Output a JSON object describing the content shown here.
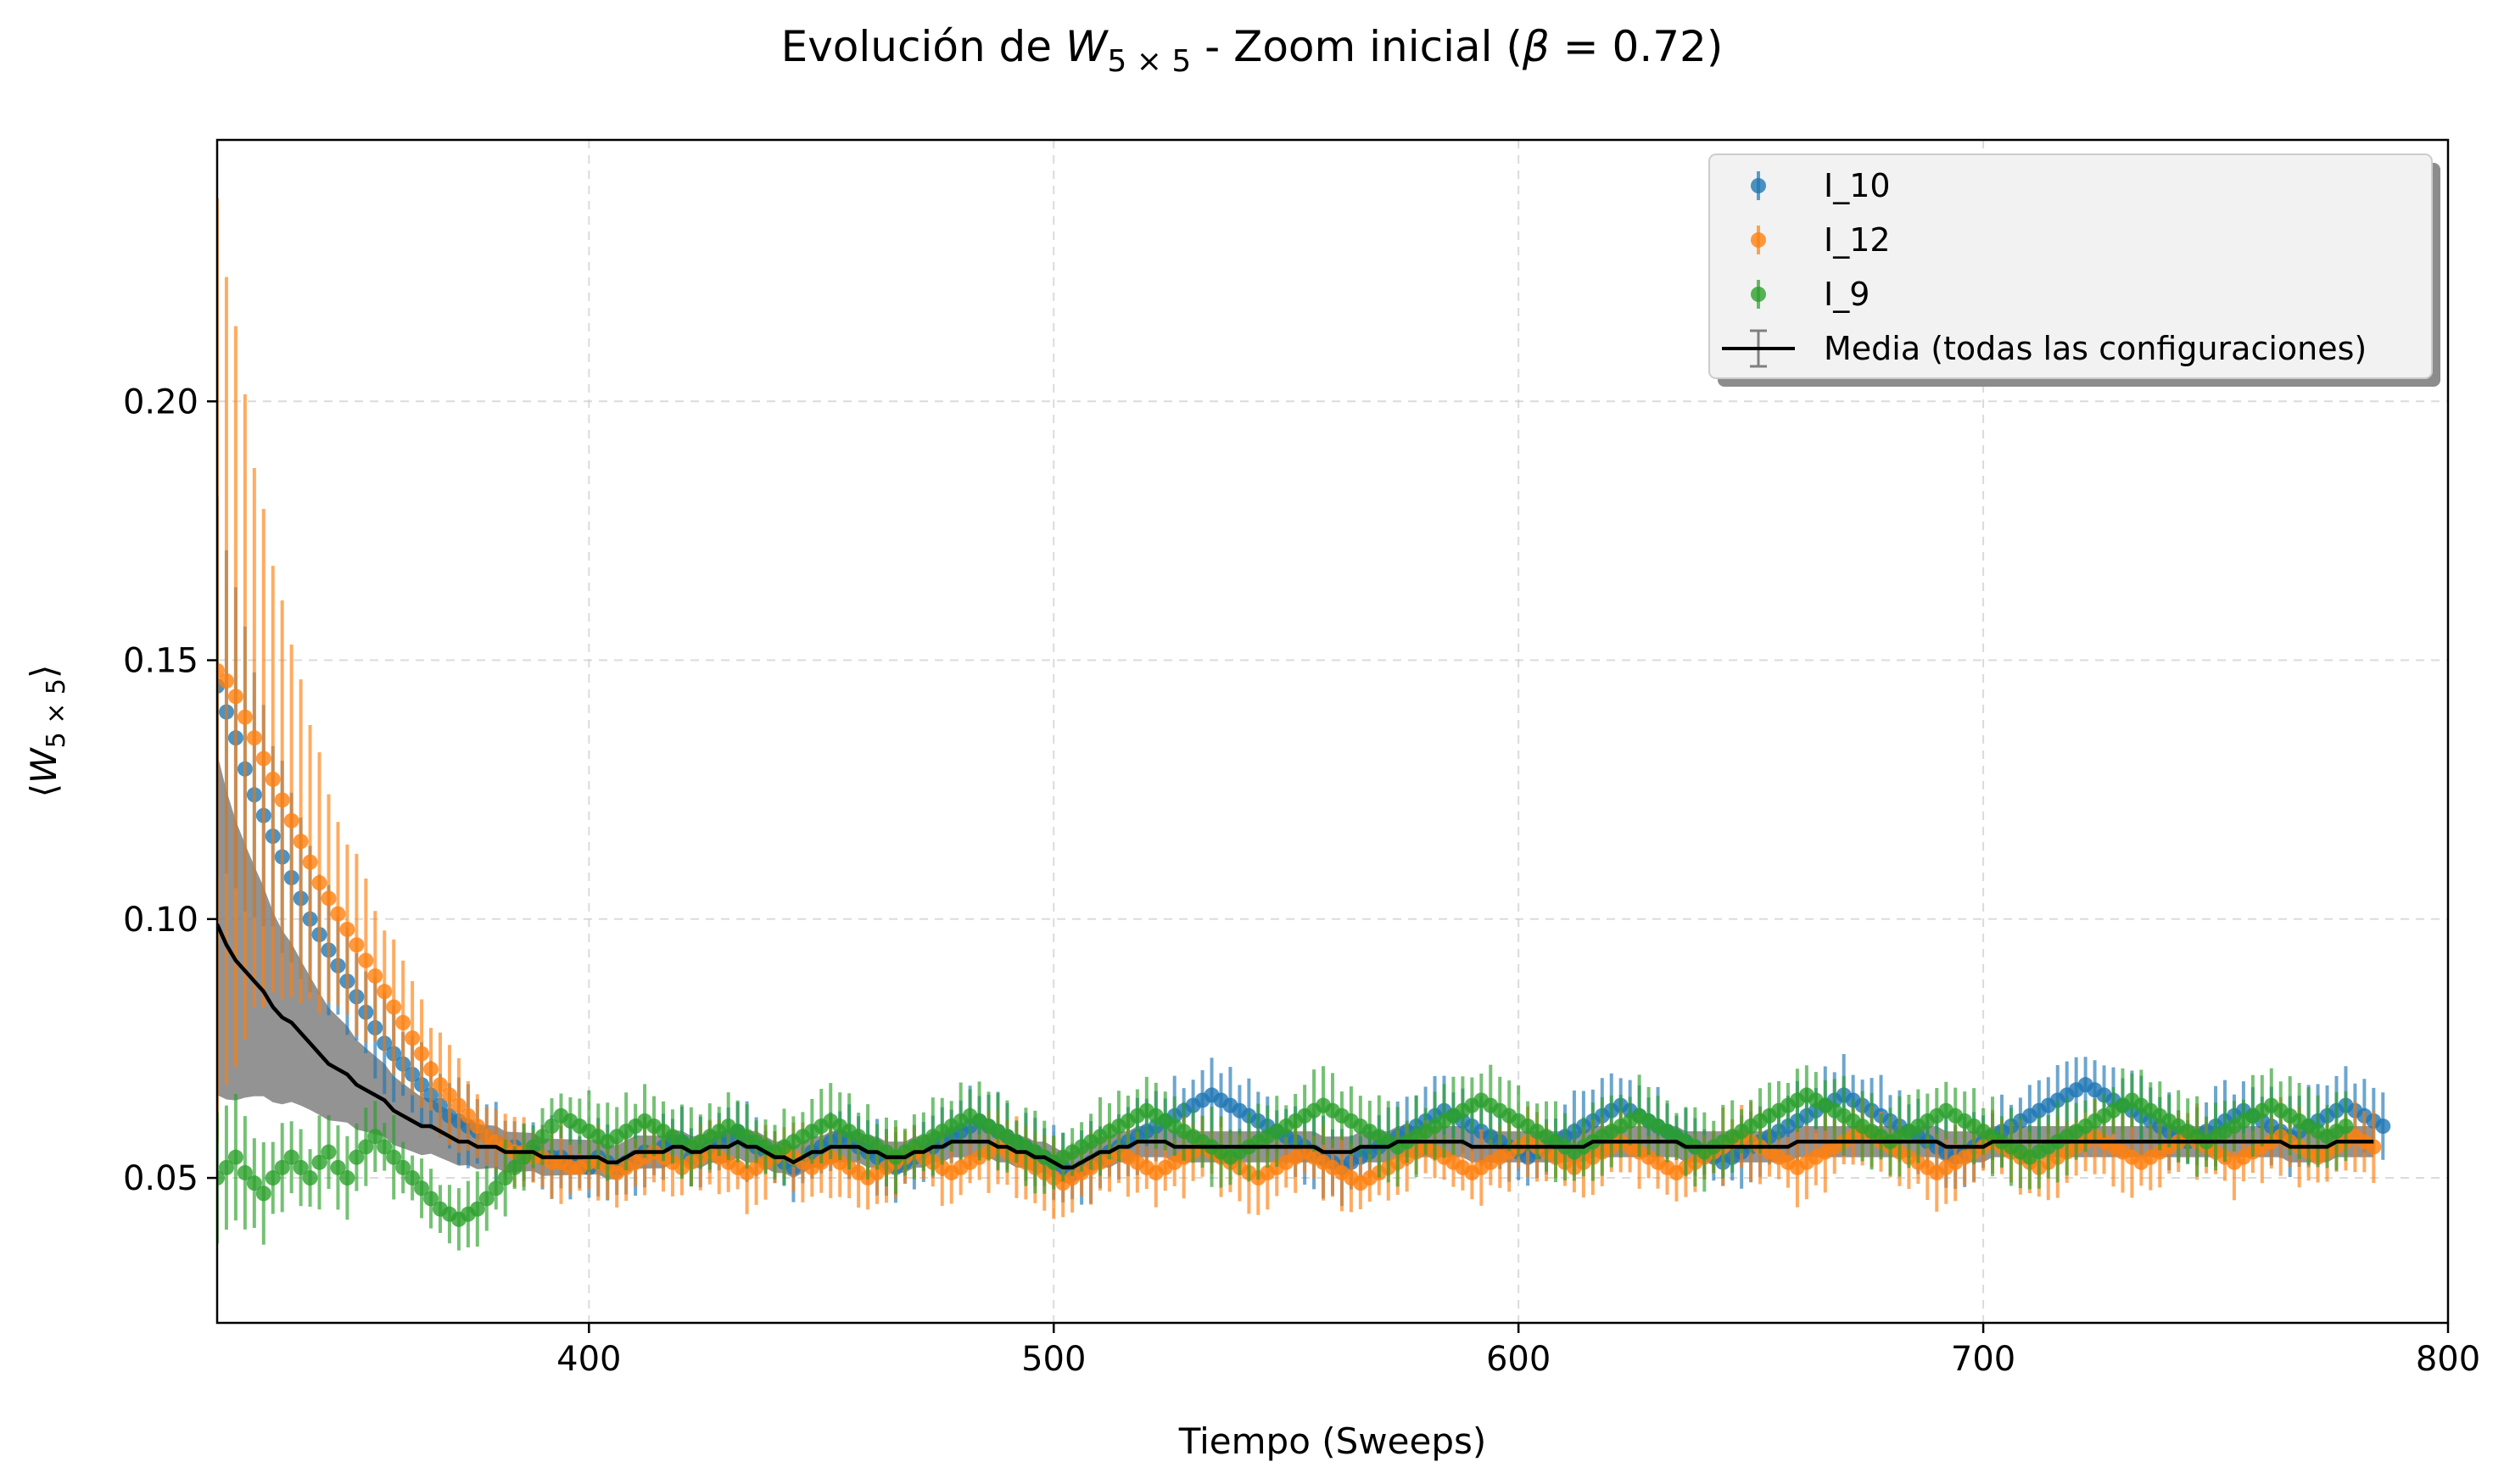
{
  "chart_data": {
    "type": "scatter",
    "title": {
      "prefix": "Evolución de ",
      "w_symbol": "W",
      "w_subscript": "5 × 5",
      "middle": " - Zoom inicial (",
      "beta_symbol": "β",
      "beta_value": " = 0.72)"
    },
    "xlabel": "Tiempo (Sweeps)",
    "ylabel": {
      "open": "⟨",
      "w_symbol": "W",
      "w_subscript": "5 × 5",
      "close": "⟩"
    },
    "xlim": [
      320,
      800
    ],
    "ylim": [
      0.022,
      0.2505
    ],
    "x_ticks": [
      400,
      500,
      600,
      700,
      800
    ],
    "y_ticks": [
      0.05,
      0.1,
      0.15,
      0.2
    ],
    "x_tick_labels": [
      "400",
      "500",
      "600",
      "700",
      "800"
    ],
    "y_tick_labels": [
      "0.05",
      "0.10",
      "0.15",
      "0.20"
    ],
    "grid": true,
    "legend_position": "top-right",
    "x_start": 320,
    "x_step": 2,
    "series": [
      {
        "name": "I_10",
        "color": "#1f77b4",
        "marker": "circle",
        "error_bars": true,
        "values": [
          0.145,
          0.14,
          0.135,
          0.129,
          0.124,
          0.12,
          0.116,
          0.112,
          0.108,
          0.104,
          0.1,
          0.097,
          0.094,
          0.091,
          0.088,
          0.085,
          0.082,
          0.079,
          0.076,
          0.074,
          0.072,
          0.07,
          0.068,
          0.066,
          0.064,
          0.062,
          0.061,
          0.06,
          0.059,
          0.058,
          0.057,
          0.056,
          0.056,
          0.055,
          0.055,
          0.054,
          0.054,
          0.054,
          0.053,
          0.053,
          0.052,
          0.054,
          0.053,
          0.052,
          0.053,
          0.054,
          0.055,
          0.055,
          0.056,
          0.057,
          0.057,
          0.054,
          0.055,
          0.056,
          0.057,
          0.058,
          0.059,
          0.057,
          0.056,
          0.055,
          0.054,
          0.053,
          0.052,
          0.053,
          0.055,
          0.056,
          0.057,
          0.058,
          0.057,
          0.056,
          0.055,
          0.054,
          0.053,
          0.052,
          0.053,
          0.054,
          0.055,
          0.056,
          0.057,
          0.058,
          0.059,
          0.06,
          0.061,
          0.06,
          0.059,
          0.058,
          0.057,
          0.056,
          0.055,
          0.054,
          0.053,
          0.052,
          0.051,
          0.052,
          0.053,
          0.054,
          0.055,
          0.056,
          0.057,
          0.058,
          0.059,
          0.06,
          0.061,
          0.062,
          0.063,
          0.064,
          0.065,
          0.066,
          0.065,
          0.064,
          0.063,
          0.062,
          0.061,
          0.06,
          0.059,
          0.058,
          0.057,
          0.056,
          0.055,
          0.054,
          0.053,
          0.052,
          0.053,
          0.054,
          0.055,
          0.056,
          0.057,
          0.058,
          0.059,
          0.06,
          0.061,
          0.062,
          0.063,
          0.062,
          0.061,
          0.06,
          0.059,
          0.058,
          0.057,
          0.056,
          0.055,
          0.054,
          0.055,
          0.056,
          0.057,
          0.058,
          0.059,
          0.06,
          0.061,
          0.062,
          0.063,
          0.064,
          0.063,
          0.062,
          0.061,
          0.06,
          0.059,
          0.058,
          0.057,
          0.056,
          0.055,
          0.054,
          0.053,
          0.054,
          0.055,
          0.056,
          0.057,
          0.058,
          0.059,
          0.06,
          0.061,
          0.062,
          0.063,
          0.064,
          0.065,
          0.066,
          0.065,
          0.064,
          0.063,
          0.062,
          0.061,
          0.06,
          0.059,
          0.058,
          0.057,
          0.056,
          0.055,
          0.054,
          0.055,
          0.056,
          0.057,
          0.058,
          0.059,
          0.06,
          0.061,
          0.062,
          0.063,
          0.064,
          0.065,
          0.066,
          0.067,
          0.068,
          0.067,
          0.066,
          0.065,
          0.064,
          0.063,
          0.062,
          0.061,
          0.06,
          0.059,
          0.058,
          0.057,
          0.058,
          0.059,
          0.06,
          0.061,
          0.062,
          0.063,
          0.062,
          0.061,
          0.06,
          0.059,
          0.058,
          0.059,
          0.06,
          0.061,
          0.062,
          0.063,
          0.064,
          0.063,
          0.062,
          0.061,
          0.06
        ]
      },
      {
        "name": "I_12",
        "color": "#ff7f0e",
        "marker": "circle",
        "error_bars": true,
        "values": [
          0.148,
          0.146,
          0.143,
          0.139,
          0.135,
          0.131,
          0.127,
          0.123,
          0.119,
          0.115,
          0.111,
          0.107,
          0.104,
          0.101,
          0.098,
          0.095,
          0.092,
          0.089,
          0.086,
          0.083,
          0.08,
          0.077,
          0.074,
          0.071,
          0.068,
          0.066,
          0.064,
          0.062,
          0.06,
          0.058,
          0.057,
          0.056,
          0.055,
          0.055,
          0.054,
          0.054,
          0.053,
          0.053,
          0.052,
          0.052,
          0.053,
          0.053,
          0.052,
          0.051,
          0.052,
          0.053,
          0.054,
          0.055,
          0.054,
          0.053,
          0.052,
          0.053,
          0.054,
          0.055,
          0.054,
          0.053,
          0.052,
          0.051,
          0.052,
          0.053,
          0.054,
          0.055,
          0.054,
          0.053,
          0.052,
          0.053,
          0.054,
          0.053,
          0.052,
          0.051,
          0.05,
          0.051,
          0.052,
          0.053,
          0.054,
          0.055,
          0.054,
          0.053,
          0.052,
          0.051,
          0.052,
          0.053,
          0.054,
          0.055,
          0.056,
          0.055,
          0.054,
          0.053,
          0.052,
          0.051,
          0.05,
          0.049,
          0.05,
          0.051,
          0.052,
          0.053,
          0.054,
          0.055,
          0.054,
          0.053,
          0.052,
          0.051,
          0.052,
          0.053,
          0.054,
          0.055,
          0.056,
          0.055,
          0.054,
          0.053,
          0.052,
          0.051,
          0.05,
          0.051,
          0.052,
          0.053,
          0.054,
          0.055,
          0.054,
          0.053,
          0.052,
          0.051,
          0.05,
          0.049,
          0.05,
          0.051,
          0.052,
          0.053,
          0.054,
          0.055,
          0.056,
          0.055,
          0.054,
          0.053,
          0.052,
          0.051,
          0.052,
          0.053,
          0.054,
          0.055,
          0.056,
          0.057,
          0.056,
          0.055,
          0.054,
          0.053,
          0.052,
          0.053,
          0.054,
          0.055,
          0.056,
          0.057,
          0.056,
          0.055,
          0.054,
          0.053,
          0.052,
          0.051,
          0.052,
          0.053,
          0.054,
          0.055,
          0.056,
          0.057,
          0.058,
          0.057,
          0.056,
          0.055,
          0.054,
          0.053,
          0.052,
          0.053,
          0.054,
          0.055,
          0.056,
          0.057,
          0.058,
          0.059,
          0.058,
          0.057,
          0.056,
          0.055,
          0.054,
          0.053,
          0.052,
          0.051,
          0.052,
          0.053,
          0.054,
          0.055,
          0.056,
          0.057,
          0.056,
          0.055,
          0.054,
          0.053,
          0.052,
          0.053,
          0.054,
          0.055,
          0.056,
          0.057,
          0.058,
          0.057,
          0.056,
          0.055,
          0.054,
          0.053,
          0.054,
          0.055,
          0.056,
          0.057,
          0.058,
          0.057,
          0.056,
          0.055,
          0.054,
          0.053,
          0.054,
          0.055,
          0.056,
          0.057,
          0.058,
          0.057,
          0.056,
          0.055,
          0.054,
          0.055,
          0.056,
          0.057,
          0.058,
          0.057,
          0.056
        ]
      },
      {
        "name": "I_9",
        "color": "#2ca02c",
        "marker": "circle",
        "error_bars": true,
        "values": [
          0.05,
          0.052,
          0.054,
          0.051,
          0.049,
          0.047,
          0.05,
          0.052,
          0.054,
          0.052,
          0.05,
          0.053,
          0.055,
          0.052,
          0.05,
          0.054,
          0.056,
          0.058,
          0.056,
          0.054,
          0.052,
          0.05,
          0.048,
          0.046,
          0.044,
          0.043,
          0.042,
          0.043,
          0.044,
          0.046,
          0.048,
          0.05,
          0.052,
          0.054,
          0.056,
          0.058,
          0.06,
          0.062,
          0.061,
          0.06,
          0.059,
          0.058,
          0.057,
          0.058,
          0.059,
          0.06,
          0.061,
          0.06,
          0.059,
          0.058,
          0.057,
          0.056,
          0.057,
          0.058,
          0.059,
          0.06,
          0.059,
          0.058,
          0.057,
          0.056,
          0.055,
          0.056,
          0.057,
          0.058,
          0.059,
          0.06,
          0.061,
          0.06,
          0.059,
          0.058,
          0.057,
          0.056,
          0.055,
          0.054,
          0.055,
          0.056,
          0.057,
          0.058,
          0.059,
          0.06,
          0.061,
          0.062,
          0.061,
          0.06,
          0.059,
          0.058,
          0.057,
          0.056,
          0.055,
          0.054,
          0.053,
          0.054,
          0.055,
          0.056,
          0.057,
          0.058,
          0.059,
          0.06,
          0.061,
          0.062,
          0.063,
          0.062,
          0.061,
          0.06,
          0.059,
          0.058,
          0.057,
          0.056,
          0.055,
          0.054,
          0.055,
          0.056,
          0.057,
          0.058,
          0.059,
          0.06,
          0.061,
          0.062,
          0.063,
          0.064,
          0.063,
          0.062,
          0.061,
          0.06,
          0.059,
          0.058,
          0.057,
          0.056,
          0.057,
          0.058,
          0.059,
          0.06,
          0.061,
          0.062,
          0.063,
          0.064,
          0.065,
          0.064,
          0.063,
          0.062,
          0.061,
          0.06,
          0.059,
          0.058,
          0.057,
          0.056,
          0.055,
          0.056,
          0.057,
          0.058,
          0.059,
          0.06,
          0.061,
          0.062,
          0.061,
          0.06,
          0.059,
          0.058,
          0.057,
          0.056,
          0.055,
          0.056,
          0.057,
          0.058,
          0.059,
          0.06,
          0.061,
          0.062,
          0.063,
          0.064,
          0.065,
          0.066,
          0.065,
          0.064,
          0.063,
          0.062,
          0.061,
          0.06,
          0.059,
          0.058,
          0.057,
          0.058,
          0.059,
          0.06,
          0.061,
          0.062,
          0.063,
          0.062,
          0.061,
          0.06,
          0.059,
          0.058,
          0.057,
          0.056,
          0.055,
          0.054,
          0.055,
          0.056,
          0.057,
          0.058,
          0.059,
          0.06,
          0.061,
          0.062,
          0.063,
          0.064,
          0.065,
          0.064,
          0.063,
          0.062,
          0.061,
          0.06,
          0.059,
          0.058,
          0.057,
          0.058,
          0.059,
          0.06,
          0.061,
          0.062,
          0.063,
          0.064,
          0.063,
          0.062,
          0.061,
          0.06,
          0.059,
          0.058,
          0.059,
          0.06
        ]
      }
    ],
    "mean": {
      "name": "Media (todas las configuraciones)",
      "color": "#000000",
      "band_color": "#808080",
      "values": [
        0.099,
        0.095,
        0.092,
        0.09,
        0.088,
        0.086,
        0.083,
        0.081,
        0.08,
        0.078,
        0.076,
        0.074,
        0.072,
        0.071,
        0.07,
        0.068,
        0.067,
        0.066,
        0.065,
        0.063,
        0.062,
        0.061,
        0.06,
        0.06,
        0.059,
        0.058,
        0.057,
        0.057,
        0.056,
        0.056,
        0.056,
        0.055,
        0.055,
        0.055,
        0.055,
        0.054,
        0.054,
        0.054,
        0.054,
        0.054,
        0.054,
        0.054,
        0.053,
        0.053,
        0.054,
        0.055,
        0.055,
        0.055,
        0.055,
        0.056,
        0.056,
        0.055,
        0.055,
        0.056,
        0.056,
        0.056,
        0.057,
        0.056,
        0.056,
        0.055,
        0.054,
        0.054,
        0.053,
        0.054,
        0.055,
        0.055,
        0.056,
        0.056,
        0.056,
        0.056,
        0.055,
        0.055,
        0.054,
        0.054,
        0.054,
        0.055,
        0.055,
        0.056,
        0.056,
        0.057,
        0.057,
        0.057,
        0.057,
        0.057,
        0.056,
        0.056,
        0.055,
        0.055,
        0.054,
        0.054,
        0.053,
        0.052,
        0.052,
        0.053,
        0.054,
        0.055,
        0.055,
        0.056,
        0.056,
        0.057,
        0.057,
        0.057,
        0.057,
        0.056,
        0.056,
        0.056,
        0.056,
        0.056,
        0.056,
        0.056,
        0.056,
        0.056,
        0.056,
        0.056,
        0.056,
        0.056,
        0.056,
        0.056,
        0.056,
        0.055,
        0.055,
        0.055,
        0.055,
        0.056,
        0.056,
        0.056,
        0.056,
        0.057,
        0.057,
        0.057,
        0.057,
        0.057,
        0.057,
        0.057,
        0.057,
        0.056,
        0.056,
        0.056,
        0.056,
        0.056,
        0.056,
        0.056,
        0.056,
        0.056,
        0.056,
        0.056,
        0.056,
        0.056,
        0.057,
        0.057,
        0.057,
        0.057,
        0.057,
        0.057,
        0.057,
        0.057,
        0.057,
        0.057,
        0.056,
        0.056,
        0.056,
        0.056,
        0.056,
        0.056,
        0.056,
        0.056,
        0.056,
        0.056,
        0.056,
        0.056,
        0.057,
        0.057,
        0.057,
        0.057,
        0.057,
        0.057,
        0.057,
        0.057,
        0.057,
        0.057,
        0.057,
        0.057,
        0.057,
        0.057,
        0.057,
        0.057,
        0.056,
        0.056,
        0.056,
        0.056,
        0.056,
        0.057,
        0.057,
        0.057,
        0.057,
        0.057,
        0.057,
        0.057,
        0.057,
        0.057,
        0.057,
        0.057,
        0.057,
        0.057,
        0.057,
        0.057,
        0.057,
        0.057,
        0.057,
        0.057,
        0.057,
        0.057,
        0.057,
        0.057,
        0.057,
        0.057,
        0.057,
        0.057,
        0.057,
        0.057,
        0.057,
        0.057,
        0.057,
        0.056,
        0.056,
        0.056,
        0.056,
        0.056,
        0.057,
        0.057,
        0.057,
        0.057,
        0.057
      ]
    }
  },
  "legend": {
    "items": [
      {
        "label": "I_10",
        "color": "#1f77b4",
        "kind": "errorbar-marker"
      },
      {
        "label": "I_12",
        "color": "#ff7f0e",
        "kind": "errorbar-marker"
      },
      {
        "label": "I_9",
        "color": "#2ca02c",
        "kind": "errorbar-marker"
      },
      {
        "label": "Media (todas las configuraciones)",
        "color": "#000000",
        "kind": "line-with-errorbar"
      }
    ]
  }
}
